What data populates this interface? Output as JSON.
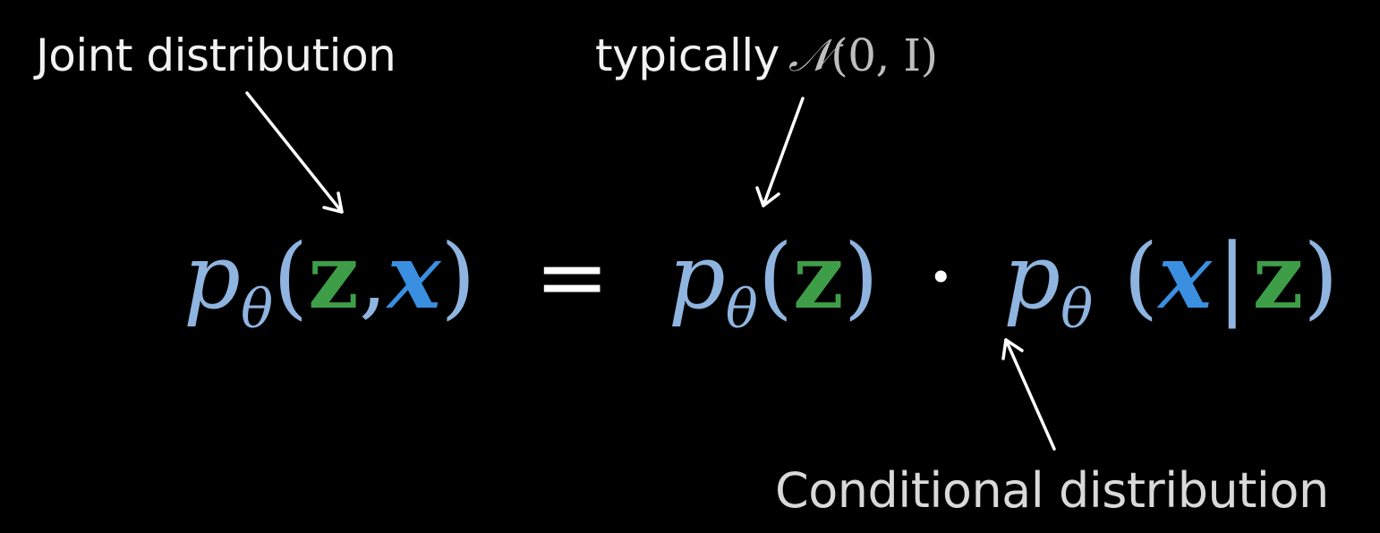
{
  "annotations": {
    "joint": "Joint distribution",
    "typically_prefix": "typically",
    "typically_symbol": "𝒩",
    "typically_args": "(0, I)",
    "conditional": "Conditional distribution"
  },
  "equation": {
    "p": "p",
    "theta": "θ",
    "open_paren": "(",
    "close_paren": ")",
    "z": "z",
    "x": "x",
    "comma": ",",
    "equals": "=",
    "dot": "·",
    "bar": "|"
  },
  "colors": {
    "background": "#000000",
    "p_theta": "#8fb4df",
    "z": "#3e9e48",
    "x": "#3a8fe0",
    "operators": "#ffffff",
    "labels": "#f2f2f2"
  }
}
